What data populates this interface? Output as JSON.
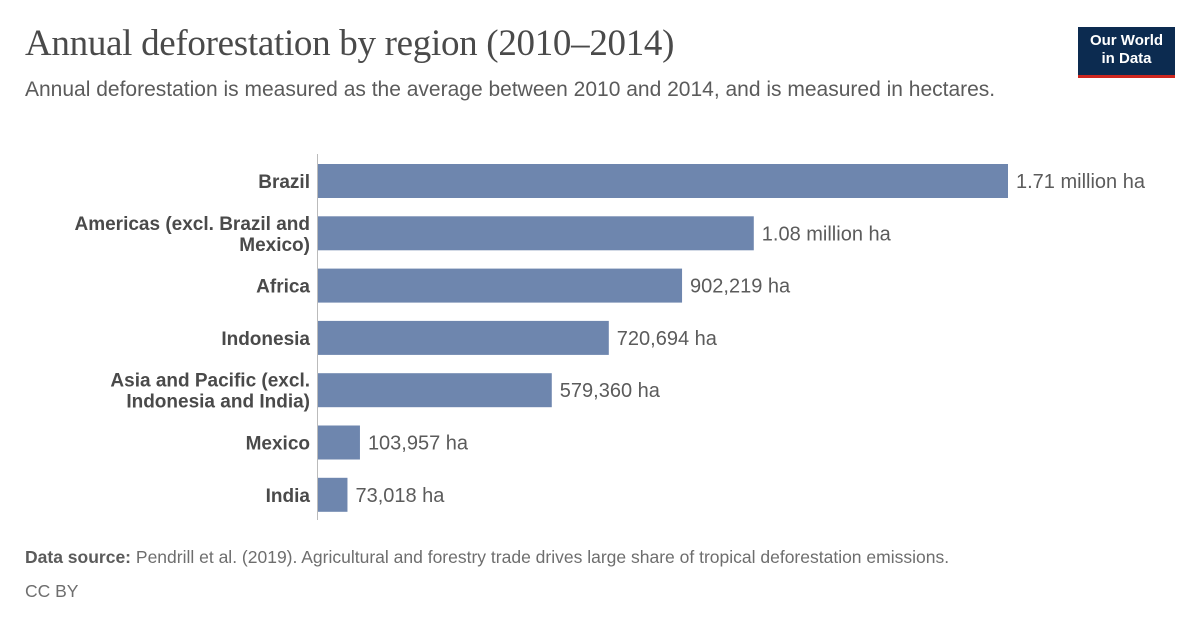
{
  "header": {
    "title": "Annual deforestation by region (2010–2014)",
    "subtitle": "Annual deforestation is measured as the average between 2010 and 2014, and is measured in hectares.",
    "logo_line1": "Our World",
    "logo_line2": "in Data"
  },
  "footer": {
    "source_label": "Data source:",
    "source_text": "Pendrill et al. (2019). Agricultural and forestry trade drives large share of tropical deforestation emissions.",
    "license": "CC BY"
  },
  "colors": {
    "bar": "#6e86ae",
    "axis": "#bbbbbb",
    "label": "#4a4a4a",
    "value": "#5b5b5b"
  },
  "chart_data": {
    "type": "bar",
    "orientation": "horizontal",
    "title": "Annual deforestation by region (2010–2014)",
    "unit": "ha",
    "categories": [
      [
        "Brazil"
      ],
      [
        "Americas (excl. Brazil and",
        "Mexico)"
      ],
      [
        "Africa"
      ],
      [
        "Indonesia"
      ],
      [
        "Asia and Pacific (excl.",
        "Indonesia and India)"
      ],
      [
        "Mexico"
      ],
      [
        "India"
      ]
    ],
    "values": [
      1710000,
      1080000,
      902219,
      720694,
      579360,
      103957,
      73018
    ],
    "value_labels": [
      "1.71 million ha",
      "1.08 million ha",
      "902,219 ha",
      "720,694 ha",
      "579,360 ha",
      "103,957 ha",
      "73,018 ha"
    ],
    "xlim": [
      0,
      1710000
    ],
    "grid": false,
    "legend": "none"
  }
}
